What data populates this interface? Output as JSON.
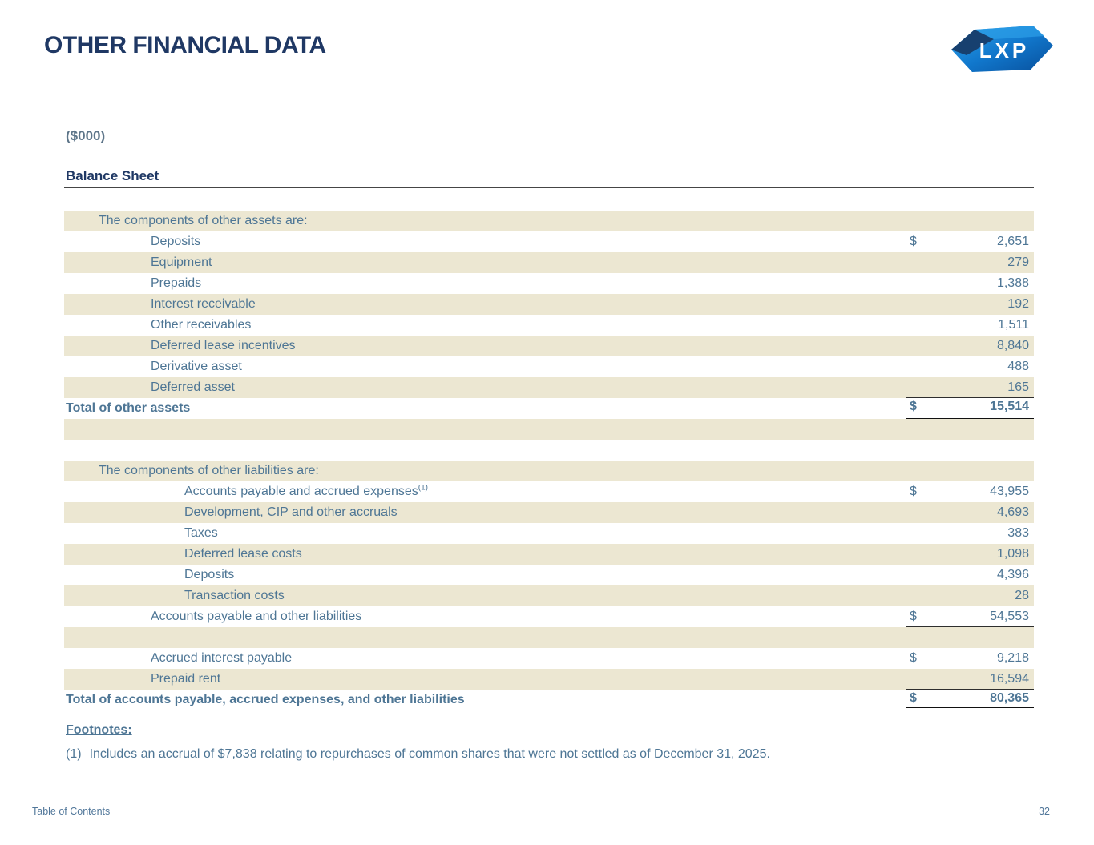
{
  "page": {
    "title": "OTHER FINANCIAL DATA",
    "units_label": "($000)",
    "section_title": "Balance Sheet",
    "logo_text": "LXP"
  },
  "colors": {
    "title_navy": "#1f3864",
    "table_text_blue": "#4e7695",
    "shaded_row_beige": "#ece7d2",
    "logo_blue_light": "#2da3ea",
    "logo_blue_dark": "#084f9b",
    "logo_facet_navy": "#17406f"
  },
  "table": {
    "rows": [
      {
        "shaded": true,
        "indent": 1,
        "label": "The components of other assets are:"
      },
      {
        "shaded": false,
        "indent": 2,
        "label": "Deposits",
        "dollar": "$",
        "value": "2,651"
      },
      {
        "shaded": true,
        "indent": 2,
        "label": "Equipment",
        "value": "279"
      },
      {
        "shaded": false,
        "indent": 2,
        "label": "Prepaids",
        "value": "1,388"
      },
      {
        "shaded": true,
        "indent": 2,
        "label": "Interest receivable",
        "value": "192"
      },
      {
        "shaded": false,
        "indent": 2,
        "label": "Other receivables",
        "value": "1,511"
      },
      {
        "shaded": true,
        "indent": 2,
        "label": "Deferred lease incentives",
        "value": "8,840"
      },
      {
        "shaded": false,
        "indent": 2,
        "label": "Derivative asset",
        "value": "488"
      },
      {
        "shaded": true,
        "indent": 2,
        "label": "Deferred asset",
        "value": "165",
        "underline": "single"
      },
      {
        "shaded": false,
        "indent": 0,
        "label": "Total of other assets",
        "bold": true,
        "dollar": "$",
        "value": "15,514",
        "underline": "double"
      },
      {
        "shaded": true,
        "indent": 0,
        "label": ""
      },
      {
        "shaded": false,
        "indent": 0,
        "label": ""
      },
      {
        "shaded": true,
        "indent": 1,
        "label": "The components of other liabilities are:"
      },
      {
        "shaded": false,
        "indent": 3,
        "label": "Accounts payable and accrued expenses",
        "sup": "(1)",
        "dollar": "$",
        "value": "43,955"
      },
      {
        "shaded": true,
        "indent": 3,
        "label": "Development, CIP and other accruals",
        "value": "4,693"
      },
      {
        "shaded": false,
        "indent": 3,
        "label": "Taxes",
        "value": "383"
      },
      {
        "shaded": true,
        "indent": 3,
        "label": "Deferred lease costs",
        "value": "1,098"
      },
      {
        "shaded": false,
        "indent": 3,
        "label": "Deposits",
        "value": "4,396"
      },
      {
        "shaded": true,
        "indent": 3,
        "label": "Transaction costs",
        "value": "28",
        "underline": "single"
      },
      {
        "shaded": false,
        "indent": 2,
        "label": "Accounts payable and other liabilities",
        "dollar": "$",
        "value": "54,553",
        "underline": "single"
      },
      {
        "shaded": true,
        "indent": 0,
        "label": ""
      },
      {
        "shaded": false,
        "indent": 2,
        "label": "Accrued interest payable",
        "dollar": "$",
        "value": "9,218"
      },
      {
        "shaded": true,
        "indent": 2,
        "label": "Prepaid rent",
        "value": "16,594",
        "underline": "single"
      },
      {
        "shaded": false,
        "indent": 0,
        "label": "Total of accounts payable, accrued expenses, and other liabilities",
        "bold": true,
        "dollar": "$",
        "value": "80,365",
        "underline": "double"
      }
    ]
  },
  "footnotes": {
    "heading": "Footnotes:",
    "items": [
      {
        "marker": "(1)",
        "text": "Includes an accrual of $7,838 relating to repurchases of common shares that were not settled as of December 31, 2025."
      }
    ]
  },
  "footer": {
    "left_link": "Table of Contents",
    "page_number": "32"
  }
}
